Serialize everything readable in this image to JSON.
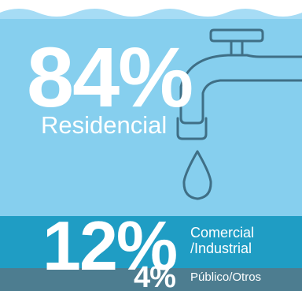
{
  "colors": {
    "water": "#a6dcf5",
    "residential_band": "#86cfee",
    "commercial_band": "#1f9dc4",
    "public_band": "#4d7d90",
    "outline": "#3f6f86",
    "text": "#ffffff"
  },
  "icons": [
    "wave-top",
    "faucet-icon",
    "water-drop-icon"
  ],
  "stats": {
    "residencial": {
      "percent": "84%",
      "label": "Residencial",
      "value": 84
    },
    "comercial": {
      "percent": "12%",
      "label": "Comercial\n/Industrial",
      "value": 12
    },
    "publico": {
      "percent": "4%",
      "label": "Público/Otros",
      "value": 4
    }
  }
}
